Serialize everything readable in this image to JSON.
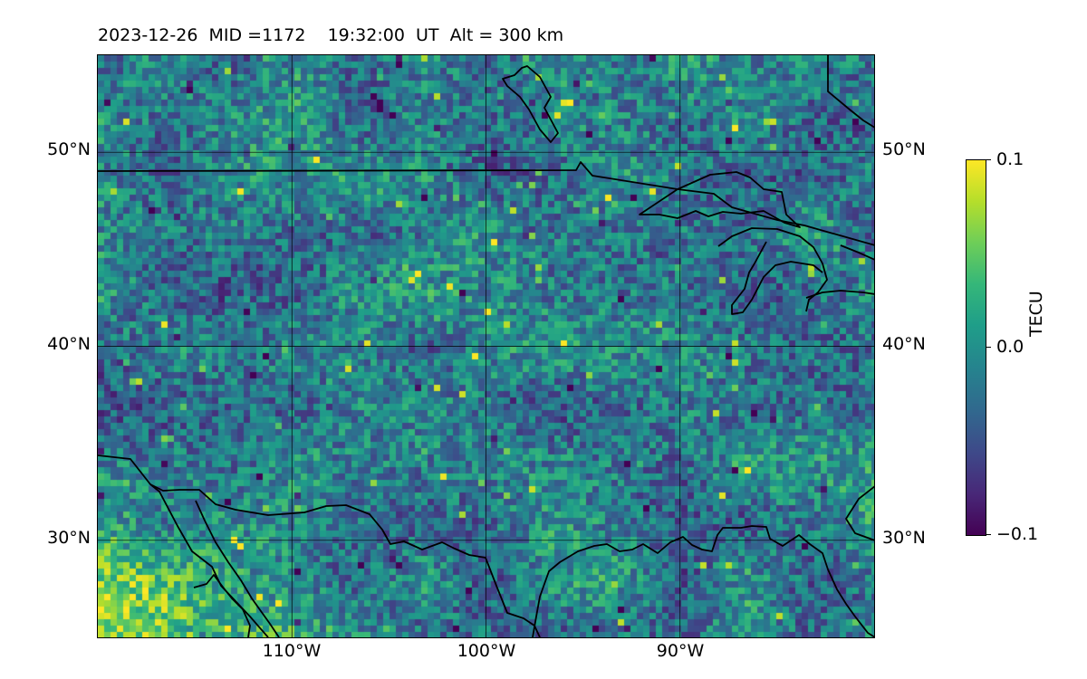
{
  "title": "2023-12-26  MID =1172    19:32:00  UT  Alt = 300 km",
  "map": {
    "lon_range": [
      -120,
      -80
    ],
    "lat_range": [
      25,
      55
    ],
    "lat_labels": [
      "50°N",
      "40°N",
      "30°N"
    ],
    "lat_values": [
      50,
      40,
      30
    ],
    "lon_labels": [
      "110°W",
      "100°W",
      "90°W"
    ],
    "lon_values": [
      -110,
      -100,
      -90
    ],
    "gridlines": true,
    "coastlines": true,
    "colormap": "viridis"
  },
  "colorbar": {
    "label": "TECU",
    "ticks": [
      "0.1",
      "0.0",
      "−0.1"
    ],
    "vmin": -0.1,
    "vmax": 0.1,
    "colors": [
      "#440154",
      "#482878",
      "#3e4989",
      "#31688e",
      "#26828e",
      "#1f9e89",
      "#35b779",
      "#6ece58",
      "#b5de2b",
      "#fde725"
    ]
  }
}
